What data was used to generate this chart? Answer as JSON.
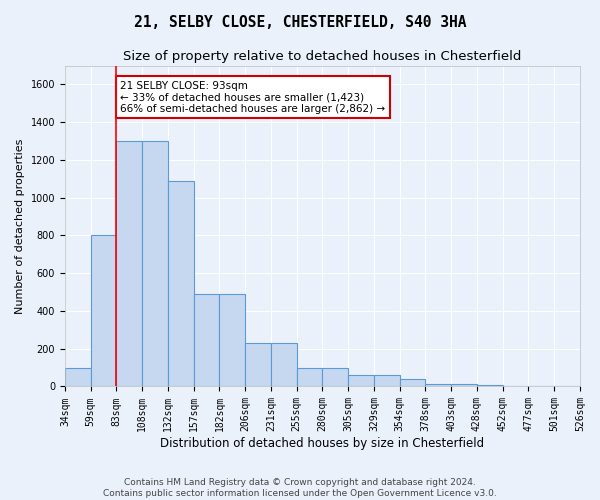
{
  "title": "21, SELBY CLOSE, CHESTERFIELD, S40 3HA",
  "subtitle": "Size of property relative to detached houses in Chesterfield",
  "xlabel": "Distribution of detached houses by size in Chesterfield",
  "ylabel": "Number of detached properties",
  "bar_values": [
    100,
    800,
    1300,
    1300,
    1090,
    490,
    490,
    230,
    230,
    100,
    100,
    60,
    60,
    40,
    15,
    15,
    10,
    5,
    5,
    5
  ],
  "bin_labels": [
    "34sqm",
    "59sqm",
    "83sqm",
    "108sqm",
    "132sqm",
    "157sqm",
    "182sqm",
    "206sqm",
    "231sqm",
    "255sqm",
    "280sqm",
    "305sqm",
    "329sqm",
    "354sqm",
    "378sqm",
    "403sqm",
    "428sqm",
    "452sqm",
    "477sqm",
    "501sqm",
    "526sqm"
  ],
  "bar_color": "#c5d8f0",
  "bar_edge_color": "#5a9bd5",
  "bar_edge_width": 0.8,
  "red_line_x": 2.0,
  "annotation_text": "21 SELBY CLOSE: 93sqm\n← 33% of detached houses are smaller (1,423)\n66% of semi-detached houses are larger (2,862) →",
  "annotation_box_color": "#ffffff",
  "annotation_box_edge_color": "#cc0000",
  "ylim": [
    0,
    1700
  ],
  "yticks": [
    0,
    200,
    400,
    600,
    800,
    1000,
    1200,
    1400,
    1600
  ],
  "bg_color": "#eaf1fb",
  "grid_color": "#ffffff",
  "footer_line1": "Contains HM Land Registry data © Crown copyright and database right 2024.",
  "footer_line2": "Contains public sector information licensed under the Open Government Licence v3.0.",
  "title_fontsize": 10.5,
  "subtitle_fontsize": 9.5,
  "xlabel_fontsize": 8.5,
  "ylabel_fontsize": 8,
  "tick_fontsize": 7,
  "annotation_fontsize": 7.5,
  "footer_fontsize": 6.5
}
